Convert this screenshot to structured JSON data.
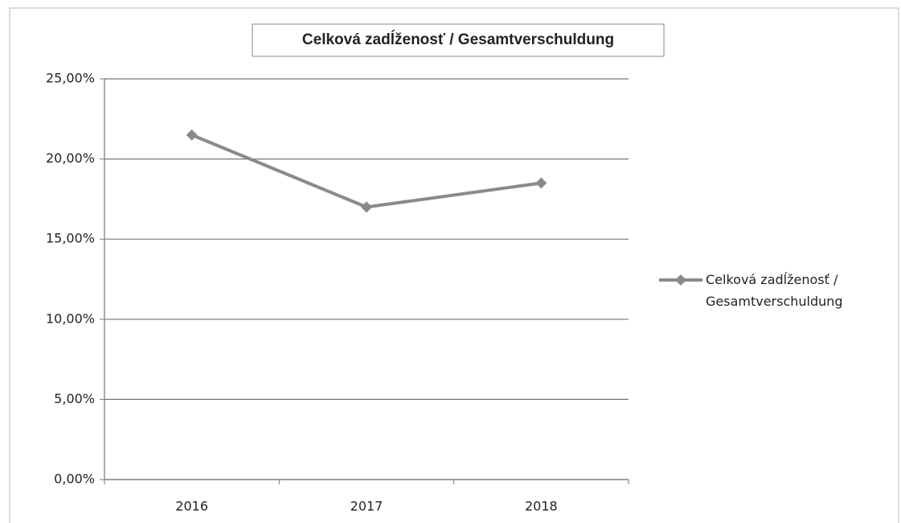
{
  "chart_data": {
    "type": "line",
    "title": "Celková zadĺženosť / Gesamtverschuldung",
    "categories": [
      "2016",
      "2017",
      "2018"
    ],
    "series": [
      {
        "name": "Celková zadĺženosť / Gesamtverschuldung",
        "color": "#8a8a8a",
        "values": [
          21.5,
          17,
          18.5
        ]
      }
    ],
    "ylim": [
      0,
      25
    ],
    "yticks": [
      {
        "value": 0,
        "label": "0,00%"
      },
      {
        "value": 5,
        "label": "5,00%"
      },
      {
        "value": 10,
        "label": "10,00%"
      },
      {
        "value": 15,
        "label": "15,00%"
      },
      {
        "value": 20,
        "label": "20,00%"
      },
      {
        "value": 25,
        "label": "25,00%"
      }
    ],
    "grid": true,
    "legend": "right"
  }
}
